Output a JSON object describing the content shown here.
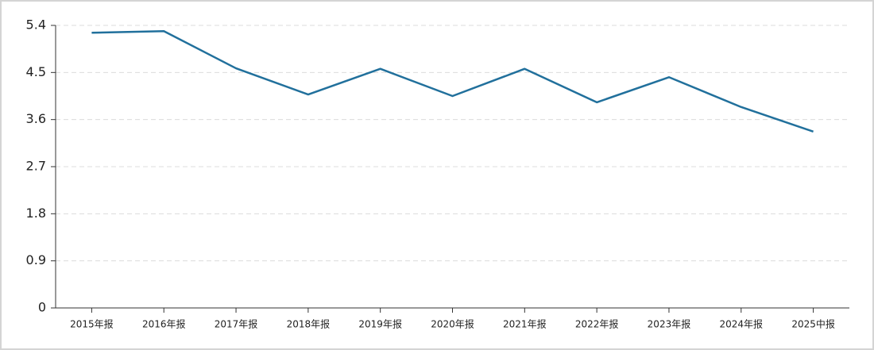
{
  "chart_data": {
    "type": "line",
    "categories": [
      "2015年报",
      "2016年报",
      "2017年报",
      "2018年报",
      "2019年报",
      "2020年报",
      "2021年报",
      "2022年报",
      "2023年报",
      "2024年报",
      "2025中报"
    ],
    "series": [
      {
        "color": "#21709c",
        "values": [
          5.26,
          5.29,
          4.58,
          4.08,
          4.57,
          4.05,
          4.57,
          3.93,
          4.41,
          3.84,
          3.37
        ]
      }
    ],
    "ylim": [
      0,
      5.4
    ],
    "yticks": [
      0,
      0.9,
      1.8,
      2.7,
      3.6,
      4.5,
      5.4
    ],
    "grid": true
  }
}
